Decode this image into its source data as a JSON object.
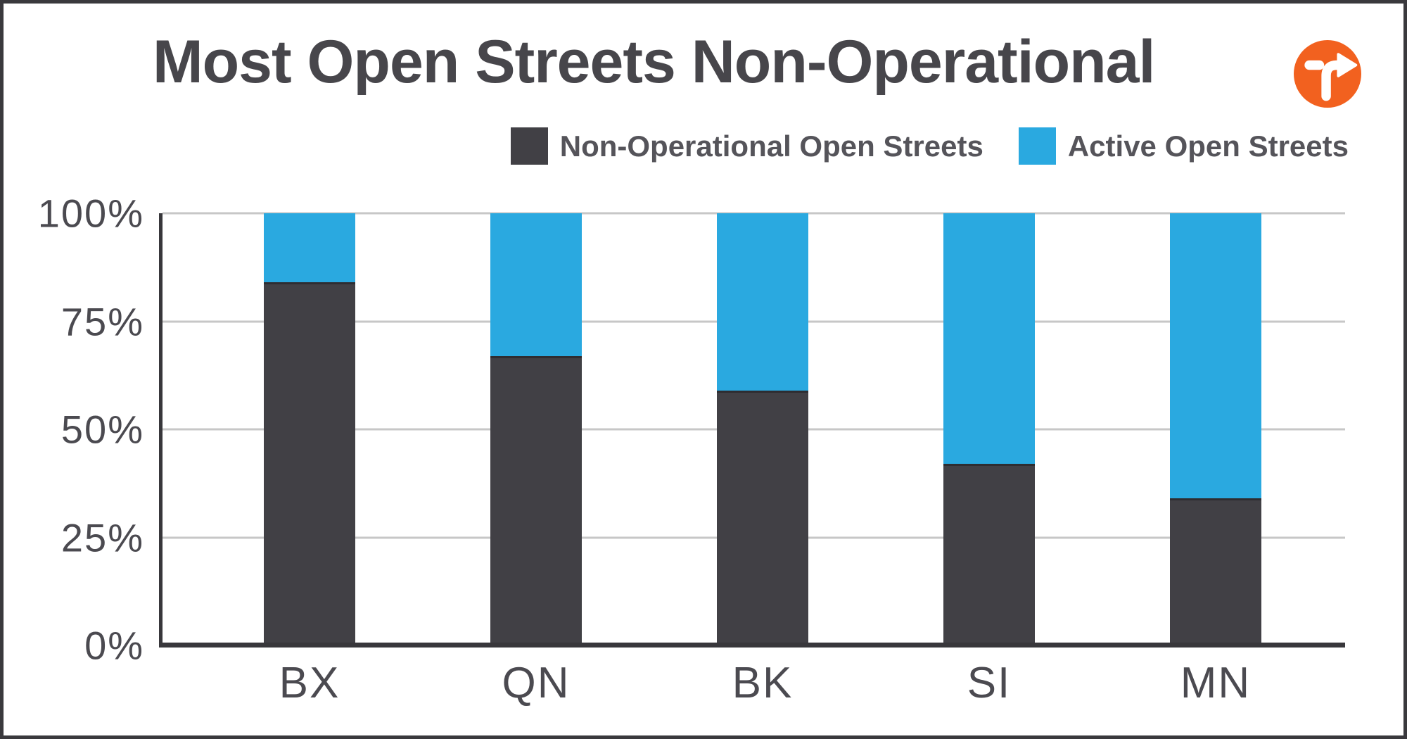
{
  "title": "Most Open Streets Non-Operational",
  "logo": {
    "name": "transportation-alternatives-logo",
    "circle_color": "#f2611f",
    "arrow_color": "#ffffff"
  },
  "legend": {
    "items": [
      {
        "label": "Non-Operational Open Streets",
        "color": "#414045"
      },
      {
        "label": "Active Open Streets",
        "color": "#2aa9e0"
      }
    ]
  },
  "chart_data": {
    "type": "bar",
    "stacked": true,
    "title": "Most Open Streets Non-Operational",
    "categories": [
      "BX",
      "QN",
      "BK",
      "SI",
      "MN"
    ],
    "series": [
      {
        "name": "Non-Operational Open Streets",
        "color": "#414045",
        "values": [
          84,
          67,
          59,
          42,
          34
        ]
      },
      {
        "name": "Active Open Streets",
        "color": "#2aa9e0",
        "values": [
          16,
          33,
          41,
          58,
          66
        ]
      }
    ],
    "xlabel": "",
    "ylabel": "",
    "ylim": [
      0,
      100
    ],
    "ytick_labels": [
      "100%",
      "75%",
      "50%",
      "25%",
      "0%"
    ],
    "grid": true,
    "gridline_color": "#c7c7c7",
    "axis_color": "#38373b",
    "legend_position": "top-right"
  },
  "colors": {
    "background": "#ffffff",
    "frame_border": "#3a393d",
    "title_text": "#47464b",
    "axis_label_text": "#4b4a50",
    "legend_text": "#55545a"
  }
}
